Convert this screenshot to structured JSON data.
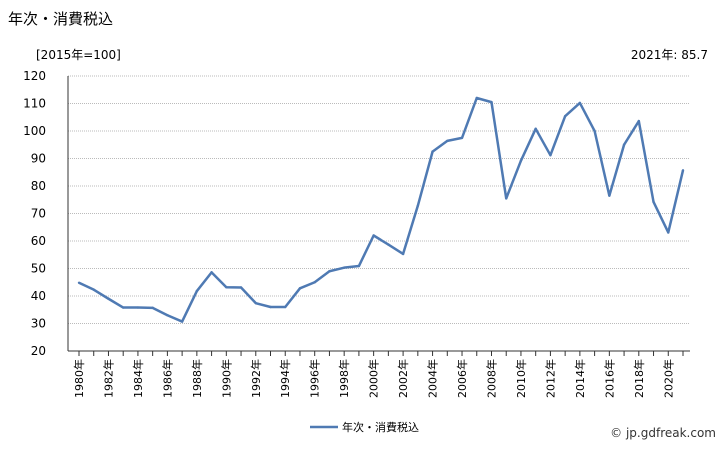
{
  "title": "年次・消費税込",
  "unit_label": "[2015年=100]",
  "latest_value_label": "2021年: 85.7",
  "source": "© jp.gdfreak.com",
  "colors": {
    "series": "#4f7ab3",
    "grid": "#bbbbbb",
    "axis": "#333333"
  },
  "chart_data": {
    "type": "line",
    "title": "年次・消費税込",
    "ylabel": "[2015年=100]",
    "ylim": [
      20,
      120
    ],
    "yticks": [
      20,
      30,
      40,
      50,
      60,
      70,
      80,
      90,
      100,
      110,
      120
    ],
    "grid": "horizontal",
    "legend_position": "bottom-center",
    "x": [
      1980,
      1981,
      1982,
      1983,
      1984,
      1985,
      1986,
      1987,
      1988,
      1989,
      1990,
      1991,
      1992,
      1993,
      1994,
      1995,
      1996,
      1997,
      1998,
      1999,
      2000,
      2001,
      2002,
      2003,
      2004,
      2005,
      2006,
      2007,
      2008,
      2009,
      2010,
      2011,
      2012,
      2013,
      2014,
      2015,
      2016,
      2017,
      2018,
      2019,
      2020,
      2021
    ],
    "xtick_labels": [
      "1980年",
      "1982年",
      "1984年",
      "1986年",
      "1988年",
      "1990年",
      "1992年",
      "1994年",
      "1996年",
      "1998年",
      "2000年",
      "2002年",
      "2004年",
      "2006年",
      "2008年",
      "2010年",
      "2012年",
      "2014年",
      "2016年",
      "2018年",
      "2020年"
    ],
    "series": [
      {
        "name": "年次・消費税込",
        "values": [
          44.8,
          42.3,
          39.0,
          35.8,
          35.8,
          35.7,
          33.0,
          30.7,
          41.8,
          48.6,
          43.2,
          43.1,
          37.4,
          36.0,
          36.0,
          42.8,
          45.0,
          49.0,
          50.3,
          50.9,
          62.0,
          58.7,
          55.3,
          72.8,
          92.5,
          96.4,
          97.5,
          112.0,
          110.5,
          75.5,
          89.2,
          100.8,
          91.2,
          105.4,
          110.2,
          100.0,
          76.5,
          95.0,
          103.6,
          74.2,
          63.1,
          85.7
        ]
      }
    ]
  }
}
